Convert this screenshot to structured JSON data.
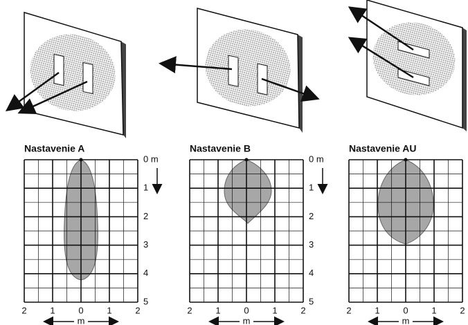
{
  "panels": [
    {
      "title": "Nastavenie A"
    },
    {
      "title": "Nastavenie B"
    },
    {
      "title": "Nastavenie AU"
    }
  ],
  "distance_labels": [
    "0 m",
    "1",
    "2",
    "3",
    "4",
    "5"
  ],
  "width_labels": [
    "2",
    "1",
    "0",
    "1",
    "2"
  ],
  "width_unit": "m"
}
